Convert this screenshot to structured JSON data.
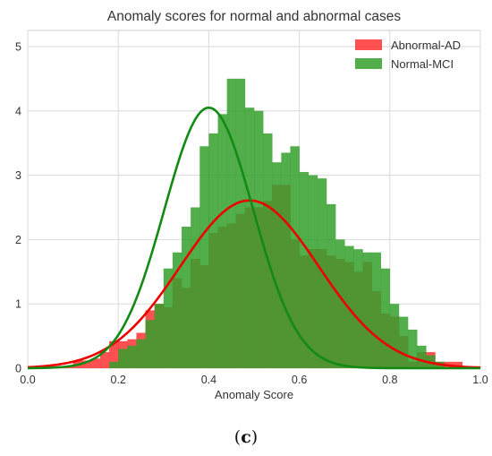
{
  "chart_data": {
    "type": "bar",
    "title": "Anomaly scores for normal and abnormal cases",
    "xlabel": "Anomaly Score",
    "ylabel": "",
    "xlim": [
      0.0,
      1.0
    ],
    "ylim": [
      0,
      5.25
    ],
    "xticks": [
      "0.0",
      "0.2",
      "0.4",
      "0.6",
      "0.8",
      "1.0"
    ],
    "yticks": [
      "0",
      "1",
      "2",
      "3",
      "4",
      "5"
    ],
    "grid": true,
    "legend_position": "top-right",
    "bin_width": 0.02,
    "bin_starts": [
      0.0,
      0.02,
      0.04,
      0.06,
      0.08,
      0.1,
      0.12,
      0.14,
      0.16,
      0.18,
      0.2,
      0.22,
      0.24,
      0.26,
      0.28,
      0.3,
      0.32,
      0.34,
      0.36,
      0.38,
      0.4,
      0.42,
      0.44,
      0.46,
      0.48,
      0.5,
      0.52,
      0.54,
      0.56,
      0.58,
      0.6,
      0.62,
      0.64,
      0.66,
      0.68,
      0.7,
      0.72,
      0.74,
      0.76,
      0.78,
      0.8,
      0.82,
      0.84,
      0.86,
      0.88,
      0.9,
      0.92,
      0.94,
      0.96,
      0.98
    ],
    "series": [
      {
        "name": "Abnormal-AD",
        "color": "#ff3333",
        "fit_color": "#ee0000",
        "mean": 0.49,
        "std": 0.153,
        "values": [
          0.03,
          0.03,
          0.03,
          0.03,
          0.03,
          0.12,
          0.12,
          0.15,
          0.25,
          0.42,
          0.42,
          0.45,
          0.55,
          0.9,
          1.0,
          0.95,
          1.4,
          1.25,
          1.7,
          1.6,
          2.1,
          2.2,
          2.25,
          2.4,
          2.5,
          2.5,
          2.6,
          2.85,
          2.85,
          2.0,
          1.75,
          1.85,
          1.85,
          1.75,
          1.7,
          1.65,
          1.5,
          1.65,
          1.2,
          0.85,
          0.8,
          0.5,
          0.1,
          0.25,
          0.25,
          0.1,
          0.1,
          0.1,
          0.03,
          0.03
        ]
      },
      {
        "name": "Normal-MCI",
        "color": "#33a02c",
        "fit_color": "#138a13",
        "mean": 0.4,
        "std": 0.0985,
        "values": [
          0,
          0,
          0,
          0,
          0,
          0,
          0,
          0,
          0,
          0.1,
          0.3,
          0.35,
          0.45,
          0.75,
          1.0,
          1.55,
          1.8,
          2.2,
          2.5,
          3.45,
          3.65,
          3.95,
          4.5,
          4.5,
          4.05,
          4.0,
          3.65,
          3.2,
          3.35,
          3.45,
          3.05,
          3.0,
          2.95,
          2.55,
          2.0,
          1.9,
          1.85,
          1.8,
          1.8,
          1.55,
          1.0,
          0.8,
          0.6,
          0.35,
          0.2,
          0.1,
          0,
          0,
          0,
          0
        ]
      }
    ]
  },
  "caption": {
    "open": "(",
    "letter": "c",
    "close": ")"
  }
}
